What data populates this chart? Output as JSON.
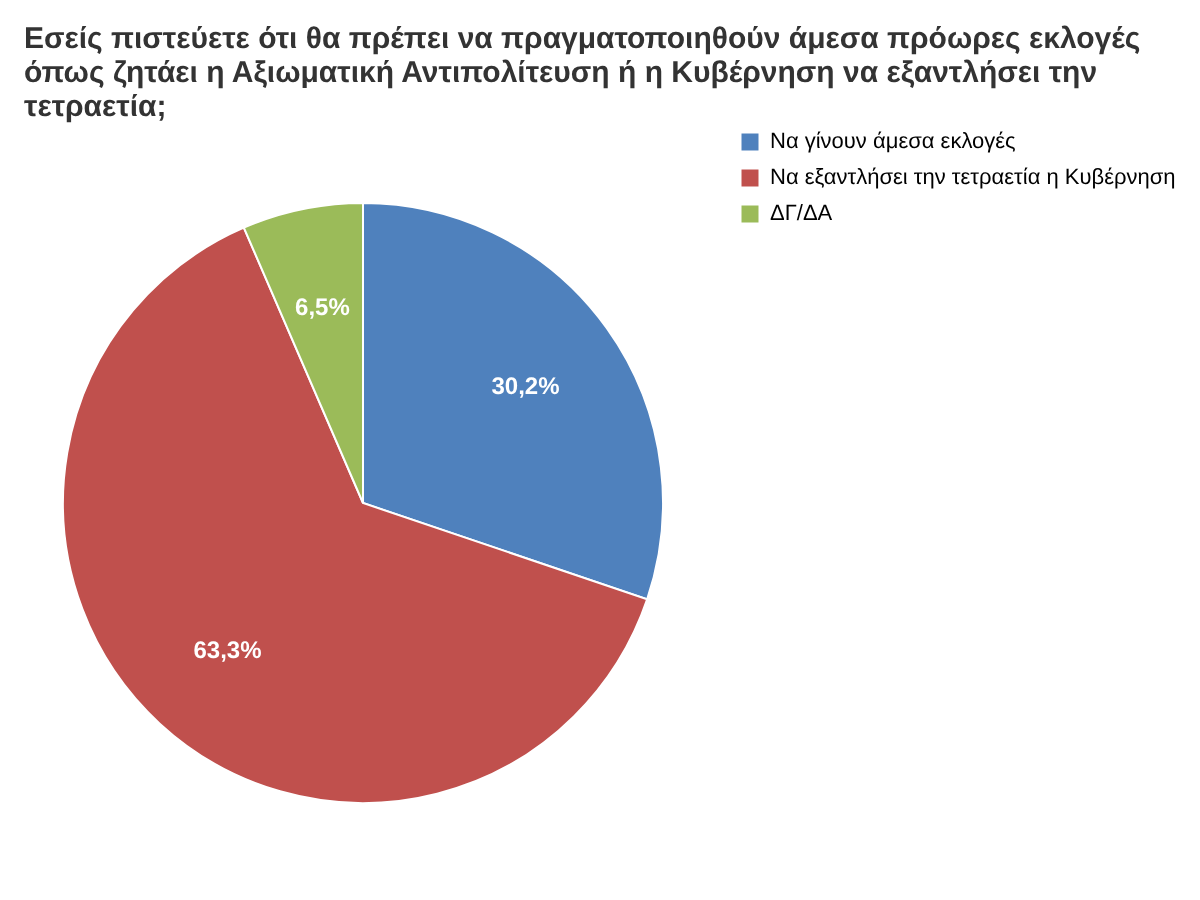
{
  "chart_data": {
    "type": "pie",
    "title": "Εσείς πιστεύετε ότι θα πρέπει να πραγματοποιηθούν άμεσα πρόωρες εκλογές όπως ζητάει η Αξιωματική Αντιπολίτευση ή η Κυβέρνηση να εξαντλήσει την τετραετία;",
    "categories": [
      "Να γίνουν άμεσα εκλογές",
      "Να εξαντλήσει την τετραετία η Κυβέρνηση",
      "ΔΓ/ΔΑ"
    ],
    "values": [
      30.2,
      63.3,
      6.5
    ],
    "colors": [
      "#4f81bd",
      "#c0504d",
      "#9bbb59"
    ],
    "value_labels": [
      "30,2%",
      "63,3%",
      "6,5%"
    ],
    "legend": "right"
  }
}
